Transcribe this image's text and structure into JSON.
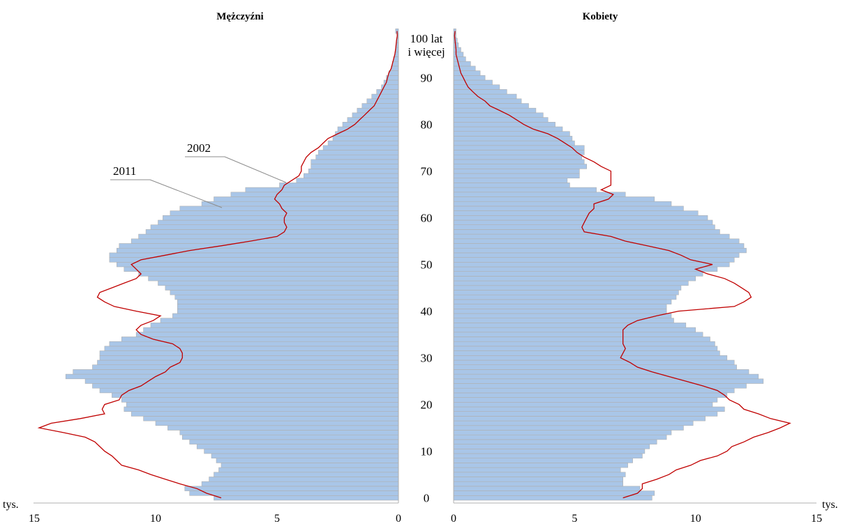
{
  "chart_data": {
    "type": "bar",
    "subtype": "population-pyramid",
    "panels": [
      {
        "side": "left",
        "title": "Mężczyźni"
      },
      {
        "side": "right",
        "title": "Kobiety"
      }
    ],
    "unit_label": "tys.",
    "x_ticks": [
      15,
      10,
      5,
      0
    ],
    "x_ticks_right": [
      0,
      5,
      10,
      15
    ],
    "xlim": [
      0,
      15
    ],
    "age_ticks": [
      "0",
      "10",
      "20",
      "30",
      "40",
      "50",
      "60",
      "70",
      "80",
      "90"
    ],
    "age_top_label": [
      "100 lat",
      "i więcej"
    ],
    "series": [
      {
        "name": "2011",
        "style": "bars",
        "color": "#a9c6e8",
        "edge": "#b0b0b0"
      },
      {
        "name": "2002",
        "style": "line",
        "color": "#c00000"
      }
    ],
    "ages": [
      0,
      1,
      2,
      3,
      4,
      5,
      6,
      7,
      8,
      9,
      10,
      11,
      12,
      13,
      14,
      15,
      16,
      17,
      18,
      19,
      20,
      21,
      22,
      23,
      24,
      25,
      26,
      27,
      28,
      29,
      30,
      31,
      32,
      33,
      34,
      35,
      36,
      37,
      38,
      39,
      40,
      41,
      42,
      43,
      44,
      45,
      46,
      47,
      48,
      49,
      50,
      51,
      52,
      53,
      54,
      55,
      56,
      57,
      58,
      59,
      60,
      61,
      62,
      63,
      64,
      65,
      66,
      67,
      68,
      69,
      70,
      71,
      72,
      73,
      74,
      75,
      76,
      77,
      78,
      79,
      80,
      81,
      82,
      83,
      84,
      85,
      86,
      87,
      88,
      89,
      90,
      91,
      92,
      93,
      94,
      95,
      96,
      97,
      98,
      99,
      100
    ],
    "men_2011": [
      7.6,
      8.6,
      8.8,
      8.1,
      7.8,
      7.6,
      7.4,
      7.3,
      7.5,
      7.7,
      8.0,
      8.3,
      8.6,
      8.9,
      9.0,
      9.5,
      10.0,
      10.5,
      11.0,
      11.3,
      11.2,
      11.4,
      11.8,
      12.3,
      12.6,
      12.9,
      13.7,
      13.4,
      12.6,
      12.4,
      12.3,
      12.3,
      12.1,
      11.9,
      11.4,
      10.8,
      10.5,
      10.2,
      9.8,
      9.3,
      9.1,
      9.1,
      9.1,
      9.2,
      9.4,
      9.6,
      9.9,
      10.3,
      10.7,
      11.3,
      11.6,
      11.9,
      11.9,
      11.6,
      11.5,
      11.0,
      10.7,
      10.4,
      10.2,
      9.9,
      9.7,
      9.4,
      9.0,
      8.1,
      7.6,
      6.9,
      6.3,
      4.9,
      4.2,
      3.9,
      3.7,
      3.6,
      3.6,
      3.4,
      3.3,
      3.1,
      2.9,
      2.7,
      2.6,
      2.5,
      2.3,
      2.1,
      1.9,
      1.7,
      1.5,
      1.3,
      1.1,
      0.9,
      0.7,
      0.6,
      0.5,
      0.4,
      0.3,
      0.25,
      0.2,
      0.15,
      0.1,
      0.08,
      0.06,
      0.04,
      0.12
    ],
    "men_2002": [
      7.3,
      7.9,
      8.3,
      9.0,
      9.6,
      10.2,
      10.7,
      11.4,
      11.6,
      11.8,
      12.1,
      12.3,
      12.5,
      12.9,
      13.8,
      14.8,
      14.3,
      13.1,
      12.1,
      12.2,
      12.1,
      11.5,
      11.4,
      11.1,
      10.6,
      10.3,
      10.0,
      9.6,
      9.4,
      9.0,
      8.9,
      8.9,
      9.0,
      9.3,
      10.1,
      10.6,
      10.8,
      10.6,
      10.1,
      9.8,
      10.8,
      11.7,
      12.1,
      12.4,
      12.3,
      11.8,
      11.3,
      10.8,
      10.6,
      10.8,
      11.0,
      10.6,
      9.6,
      8.6,
      7.3,
      6.1,
      5.0,
      4.7,
      4.6,
      4.7,
      4.7,
      4.6,
      4.8,
      4.9,
      5.1,
      5.0,
      4.8,
      4.7,
      4.4,
      4.1,
      4.0,
      4.0,
      3.9,
      3.8,
      3.6,
      3.3,
      3.1,
      2.9,
      2.5,
      2.1,
      1.8,
      1.6,
      1.4,
      1.2,
      1.0,
      0.9,
      0.8,
      0.7,
      0.6,
      0.5,
      0.45,
      0.4,
      0.3,
      0.25,
      0.2,
      0.15,
      0.12,
      0.1,
      0.08,
      0.05,
      0.06
    ],
    "women_2011": [
      8.2,
      8.3,
      7.7,
      7.0,
      7.0,
      7.1,
      6.9,
      7.2,
      7.4,
      7.8,
      7.9,
      8.1,
      8.4,
      8.8,
      9.0,
      9.5,
      9.9,
      10.4,
      10.9,
      11.2,
      10.7,
      10.9,
      11.3,
      11.6,
      12.1,
      12.8,
      12.6,
      12.2,
      11.7,
      11.6,
      11.3,
      11.0,
      10.9,
      10.8,
      10.6,
      10.3,
      10.0,
      9.6,
      9.1,
      9.0,
      8.8,
      8.8,
      9.0,
      9.2,
      9.3,
      9.4,
      9.7,
      10.0,
      10.3,
      10.9,
      11.4,
      11.6,
      11.8,
      12.1,
      12.0,
      11.8,
      11.4,
      11.0,
      10.8,
      10.7,
      10.5,
      10.1,
      9.5,
      9.0,
      8.3,
      7.1,
      5.9,
      4.8,
      4.7,
      5.2,
      5.2,
      5.5,
      5.4,
      5.3,
      5.4,
      5.4,
      5.0,
      4.9,
      4.8,
      4.5,
      4.2,
      3.9,
      3.7,
      3.4,
      3.1,
      2.8,
      2.6,
      2.2,
      1.9,
      1.6,
      1.3,
      1.1,
      0.9,
      0.7,
      0.5,
      0.4,
      0.3,
      0.2,
      0.15,
      0.1,
      0.1
    ],
    "women_2002": [
      7.0,
      7.6,
      7.8,
      7.8,
      8.4,
      8.9,
      9.2,
      9.8,
      10.2,
      10.9,
      11.3,
      11.5,
      12.0,
      12.4,
      13.0,
      13.5,
      13.9,
      13.1,
      12.6,
      12.0,
      11.8,
      11.4,
      11.2,
      10.9,
      10.3,
      9.6,
      8.9,
      8.2,
      7.6,
      7.3,
      6.9,
      7.0,
      7.1,
      7.0,
      7.0,
      7.0,
      7.0,
      7.2,
      7.6,
      8.4,
      9.3,
      11.6,
      12.0,
      12.3,
      12.2,
      11.9,
      11.6,
      11.2,
      10.5,
      10.0,
      10.7,
      9.8,
      9.4,
      8.9,
      8.0,
      7.1,
      6.5,
      5.4,
      5.3,
      5.4,
      5.5,
      5.6,
      5.8,
      5.8,
      6.4,
      6.6,
      6.1,
      6.5,
      6.5,
      6.5,
      6.5,
      6.1,
      5.8,
      5.4,
      5.1,
      4.9,
      4.6,
      4.3,
      3.9,
      3.3,
      2.9,
      2.6,
      2.3,
      1.9,
      1.5,
      1.3,
      1.0,
      0.8,
      0.6,
      0.5,
      0.4,
      0.3,
      0.25,
      0.2,
      0.15,
      0.1,
      0.1,
      0.08,
      0.06,
      0.04,
      0.06
    ]
  }
}
